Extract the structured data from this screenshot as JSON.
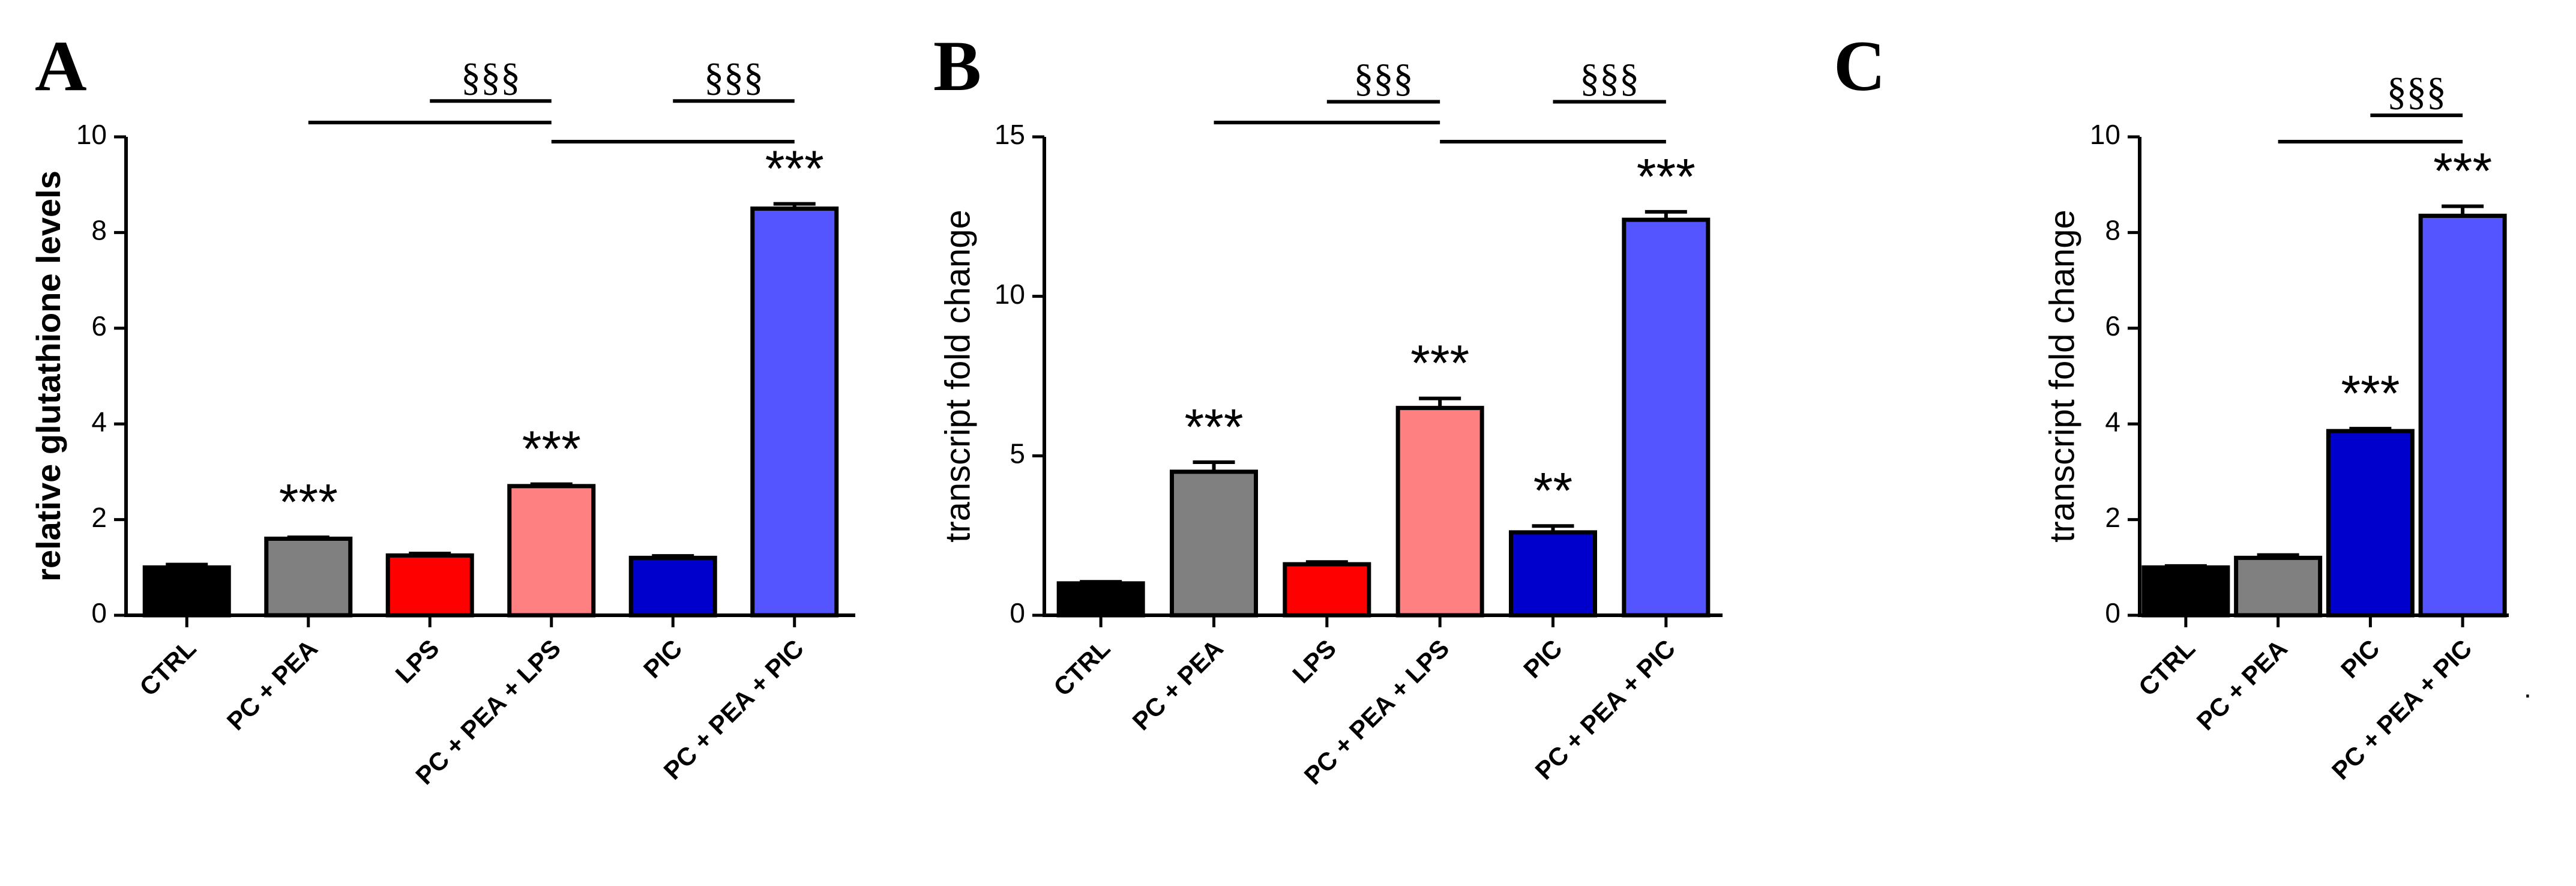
{
  "chart_data": [
    {
      "type": "bar",
      "panel": "A",
      "ylabel": "relative glutathione levels",
      "ylim": [
        0,
        10
      ],
      "yticks": [
        "0",
        "2",
        "4",
        "6",
        "8",
        "10"
      ],
      "categories": [
        "CTRL",
        "PC + PEA",
        "LPS",
        "PC + PEA + LPS",
        "PIC",
        "PC + PEA + PIC"
      ],
      "values": [
        1.0,
        1.6,
        1.25,
        2.7,
        1.2,
        8.5
      ],
      "errors": [
        0.06,
        0.03,
        0.04,
        0.04,
        0.04,
        0.1
      ],
      "colors": [
        "#000000",
        "#808080",
        "#ff0000",
        "#ff8080",
        "#0000cc",
        "#5555ff"
      ],
      "annotations": [
        "",
        "***",
        "",
        "***",
        "",
        "***"
      ],
      "brackets": [
        {
          "from": 1,
          "to": 3,
          "label": "",
          "y": 10.3
        },
        {
          "from": 3,
          "to": 5,
          "label": "",
          "y": 9.9
        },
        {
          "from": 2,
          "to": 3,
          "label": "§§§",
          "y": 10.75
        },
        {
          "from": 4,
          "to": 5,
          "label": "§§§",
          "y": 10.75
        }
      ]
    },
    {
      "type": "bar",
      "panel": "B",
      "ylabel": "transcript fold change",
      "ylim": [
        0,
        15
      ],
      "yticks": [
        "0",
        "5",
        "10",
        "15"
      ],
      "categories": [
        "CTRL",
        "PC + PEA",
        "LPS",
        "PC + PEA + LPS",
        "PIC",
        "PC + PEA + PIC"
      ],
      "values": [
        1.0,
        4.5,
        1.6,
        6.5,
        2.6,
        12.4
      ],
      "errors": [
        0.05,
        0.3,
        0.07,
        0.3,
        0.2,
        0.25
      ],
      "colors": [
        "#000000",
        "#808080",
        "#ff0000",
        "#ff8080",
        "#0000cc",
        "#5555ff"
      ],
      "annotations": [
        "",
        "***",
        "",
        "***",
        "**",
        "***"
      ],
      "brackets": [
        {
          "from": 1,
          "to": 3,
          "label": "",
          "y": 15.45
        },
        {
          "from": 3,
          "to": 5,
          "label": "",
          "y": 14.85
        },
        {
          "from": 2,
          "to": 3,
          "label": "§§§",
          "y": 16.1
        },
        {
          "from": 4,
          "to": 5,
          "label": "§§§",
          "y": 16.1
        }
      ]
    },
    {
      "type": "bar",
      "panel": "C",
      "ylabel": "transcript fold change",
      "ylim": [
        0,
        10
      ],
      "yticks": [
        "0",
        "2",
        "4",
        "6",
        "8",
        "10"
      ],
      "categories": [
        "CTRL",
        "PC + PEA",
        "PIC",
        "PC + PEA + PIC"
      ],
      "values": [
        1.0,
        1.2,
        3.85,
        8.35
      ],
      "errors": [
        0.03,
        0.06,
        0.05,
        0.2
      ],
      "colors": [
        "#000000",
        "#808080",
        "#0000cc",
        "#5555ff"
      ],
      "annotations": [
        "",
        "",
        "***",
        "***"
      ],
      "brackets": [
        {
          "from": 1,
          "to": 3,
          "label": "",
          "y": 9.9
        },
        {
          "from": 2,
          "to": 3,
          "label": "§§§",
          "y": 10.45
        }
      ]
    }
  ]
}
